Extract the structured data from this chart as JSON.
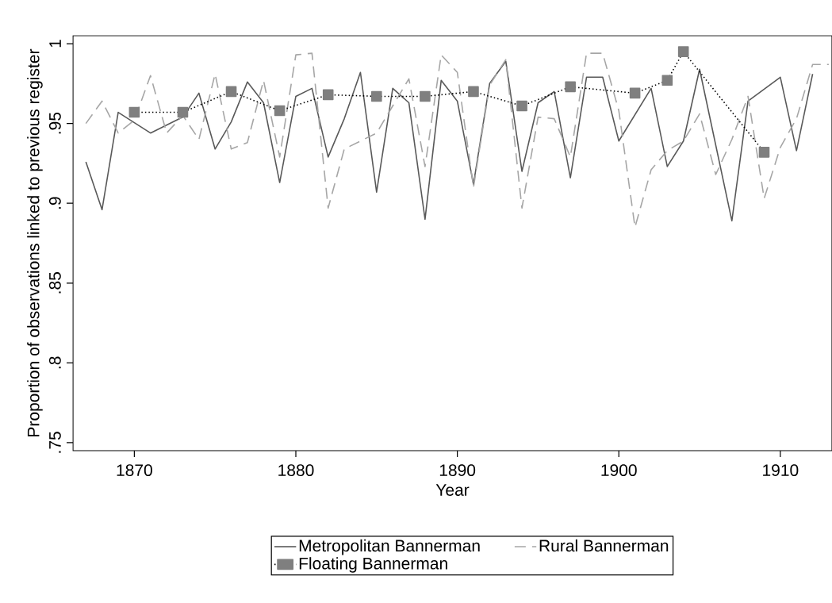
{
  "chart_data": {
    "type": "line",
    "xlabel": "Year",
    "ylabel": "Proportion of observations linked to previous register",
    "xlim": [
      1866.2,
      1913.2
    ],
    "ylim": [
      0.745,
      1.005
    ],
    "xticks": [
      1870,
      1880,
      1890,
      1900,
      1910
    ],
    "yticks": [
      {
        "value": 0.75,
        "label": ".75"
      },
      {
        "value": 0.8,
        "label": ".8"
      },
      {
        "value": 0.85,
        "label": ".85"
      },
      {
        "value": 0.9,
        "label": ".9"
      },
      {
        "value": 0.95,
        "label": ".95"
      },
      1
    ],
    "grid": false,
    "legend": "bottom",
    "series": [
      {
        "name": "Metropolitan Bannerman",
        "color": "#595959",
        "line_style": "solid",
        "marker": "none",
        "x": [
          1867,
          1868,
          1869,
          1871,
          1873,
          1874,
          1875,
          1876,
          1877,
          1878,
          1879,
          1880,
          1881,
          1882,
          1883,
          1884,
          1885,
          1886,
          1887,
          1888,
          1889,
          1890,
          1891,
          1892,
          1893,
          1894,
          1895,
          1896,
          1897,
          1898,
          1899,
          1900,
          1902,
          1903,
          1904,
          1905,
          1907,
          1908,
          1910,
          1911,
          1912
        ],
        "values": [
          0.926,
          0.896,
          0.957,
          0.944,
          0.954,
          0.969,
          0.934,
          0.951,
          0.976,
          0.963,
          0.913,
          0.967,
          0.972,
          0.929,
          0.953,
          0.982,
          0.907,
          0.972,
          0.963,
          0.89,
          0.977,
          0.964,
          0.912,
          0.975,
          0.989,
          0.92,
          0.963,
          0.97,
          0.916,
          0.979,
          0.979,
          0.939,
          0.972,
          0.923,
          0.939,
          0.984,
          0.889,
          0.964,
          0.979,
          0.933,
          0.981
        ]
      },
      {
        "name": "Rural Bannerman",
        "color": "#a6a6a6",
        "line_style": "dashed",
        "marker": "none",
        "x": [
          1867,
          1868,
          1869,
          1870,
          1871,
          1872,
          1873,
          1874,
          1875,
          1876,
          1877,
          1878,
          1879,
          1880,
          1881,
          1882,
          1883,
          1884,
          1885,
          1886,
          1887,
          1888,
          1889,
          1890,
          1891,
          1892,
          1893,
          1894,
          1895,
          1896,
          1897,
          1898,
          1899,
          1900,
          1901,
          1902,
          1903,
          1904,
          1905,
          1906,
          1907,
          1908,
          1909,
          1910,
          1911,
          1912,
          1913
        ],
        "values": [
          0.95,
          0.964,
          0.944,
          0.952,
          0.98,
          0.944,
          0.955,
          0.94,
          0.981,
          0.934,
          0.938,
          0.977,
          0.929,
          0.993,
          0.994,
          0.897,
          0.934,
          0.939,
          0.944,
          0.961,
          0.978,
          0.923,
          0.993,
          0.982,
          0.91,
          0.974,
          0.99,
          0.897,
          0.954,
          0.953,
          0.929,
          0.994,
          0.994,
          0.958,
          0.885,
          0.921,
          0.933,
          0.939,
          0.956,
          0.918,
          0.94,
          0.967,
          0.903,
          0.935,
          0.953,
          0.987,
          0.987
        ]
      },
      {
        "name": "Floating Bannerman",
        "color": "#7f7f7f",
        "line_style": "dotted",
        "marker": "square",
        "x": [
          1870,
          1873,
          1876,
          1879,
          1882,
          1885,
          1888,
          1891,
          1894,
          1897,
          1901,
          1903,
          1904,
          1909
        ],
        "values": [
          0.957,
          0.957,
          0.97,
          0.958,
          0.968,
          0.967,
          0.967,
          0.97,
          0.961,
          0.973,
          0.969,
          0.977,
          0.995,
          0.932
        ]
      }
    ]
  }
}
